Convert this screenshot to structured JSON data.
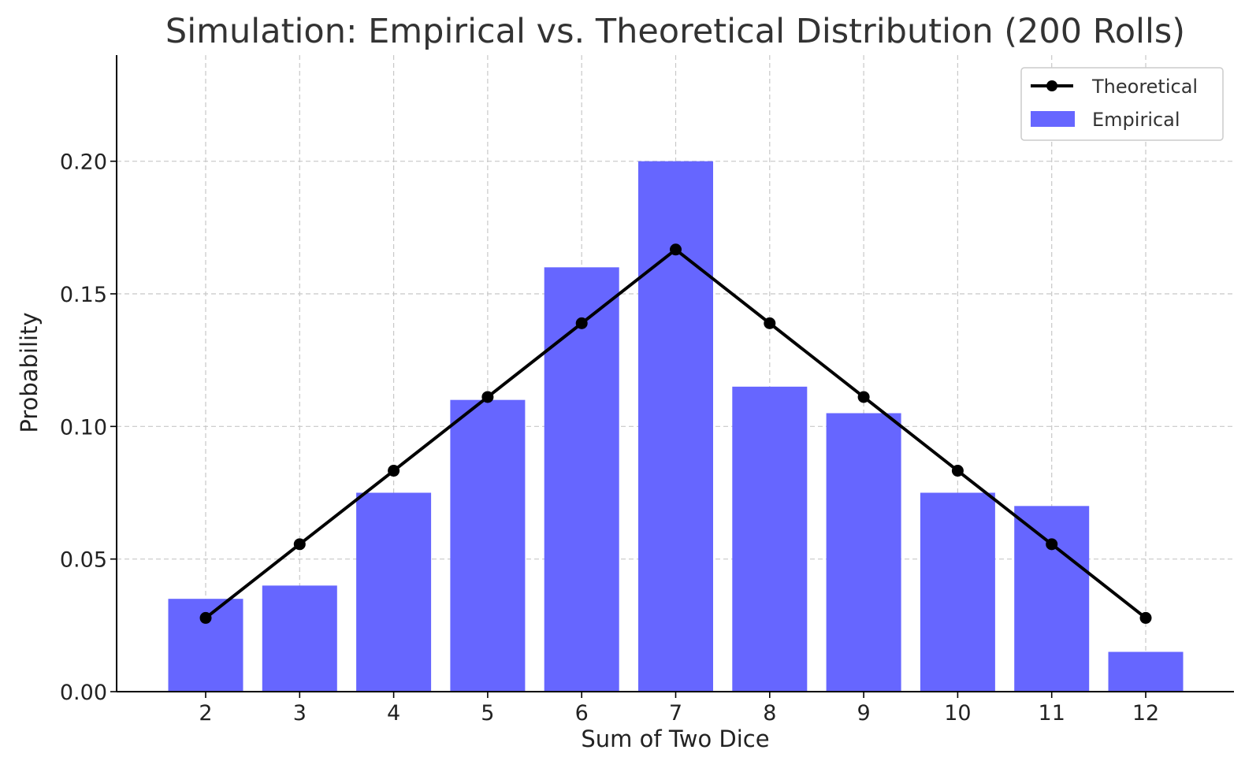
{
  "chart_data": {
    "type": "bar",
    "title": "Simulation: Empirical vs. Theoretical Distribution (200 Rolls)",
    "xlabel": "Sum of Two Dice",
    "ylabel": "Probability",
    "categories": [
      "2",
      "3",
      "4",
      "5",
      "6",
      "7",
      "8",
      "9",
      "10",
      "11",
      "12"
    ],
    "ylim": [
      0,
      0.24
    ],
    "yticks": [
      "0.00",
      "0.05",
      "0.10",
      "0.15",
      "0.20"
    ],
    "grid": true,
    "legend_position": "top-right",
    "series": [
      {
        "name": "Theoretical",
        "type": "line",
        "color": "#000000",
        "values": [
          0.0278,
          0.0556,
          0.0833,
          0.1111,
          0.1389,
          0.1667,
          0.1389,
          0.1111,
          0.0833,
          0.0556,
          0.0278
        ]
      },
      {
        "name": "Empirical",
        "type": "bar",
        "color": "#6666ff",
        "values": [
          0.035,
          0.04,
          0.075,
          0.11,
          0.16,
          0.2,
          0.115,
          0.105,
          0.075,
          0.07,
          0.015
        ]
      }
    ]
  }
}
